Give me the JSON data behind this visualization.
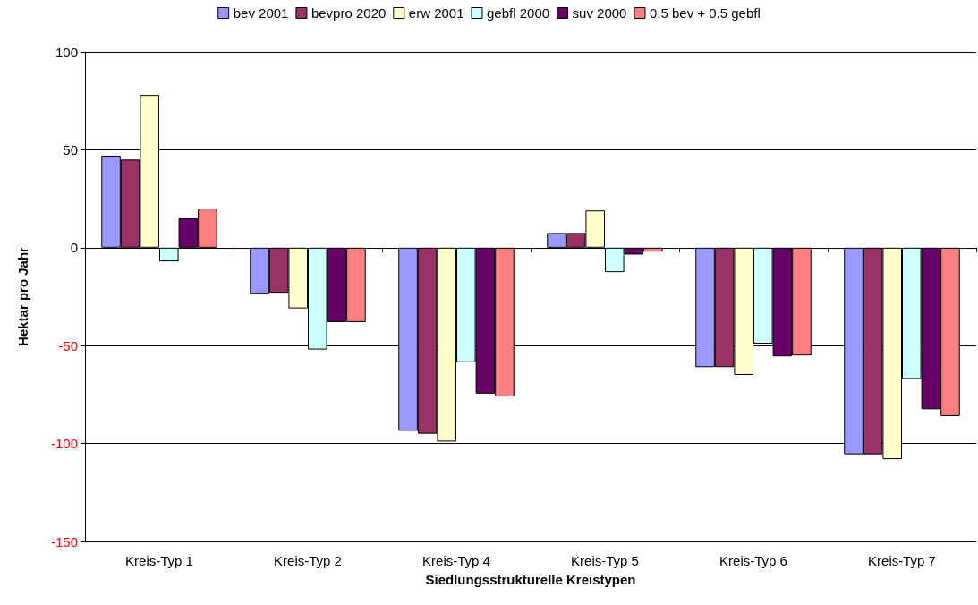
{
  "chart_data": {
    "type": "bar",
    "xlabel": "Siedlungsstrukturelle Kreistypen",
    "ylabel": "Hektar pro Jahr",
    "categories": [
      "Kreis-Typ 1",
      "Kreis-Typ 2",
      "Kreis-Typ 4",
      "Kreis-Typ 5",
      "Kreis-Typ 6",
      "Kreis-Typ 7"
    ],
    "series": [
      {
        "name": "bev 2001",
        "color": "#9999ff",
        "values": [
          47,
          -23.5,
          -93.5,
          7.5,
          -61,
          -105.5
        ]
      },
      {
        "name": "bevpro 2020",
        "color": "#993366",
        "values": [
          45,
          -23,
          -95,
          7.5,
          -61,
          -105.5
        ]
      },
      {
        "name": "erw 2001",
        "color": "#ffffcc",
        "values": [
          78,
          -31,
          -99,
          19,
          -65,
          -108
        ]
      },
      {
        "name": "gebfl 2000",
        "color": "#ccffff",
        "values": [
          -7,
          -52,
          -58.5,
          -12.5,
          -49,
          -67
        ]
      },
      {
        "name": "suv 2000",
        "color": "#660066",
        "values": [
          15,
          -38,
          -74.5,
          -3.5,
          -55.5,
          -82.5
        ]
      },
      {
        "name": "0.5 bev + 0.5 gebfl",
        "color": "#ff8080",
        "values": [
          20,
          -38,
          -76,
          -2,
          -55,
          -86
        ]
      }
    ],
    "ylim": [
      -150,
      100
    ],
    "yticks": [
      -150,
      -100,
      -50,
      0,
      50,
      100
    ],
    "grid": "y",
    "legend": "top"
  }
}
